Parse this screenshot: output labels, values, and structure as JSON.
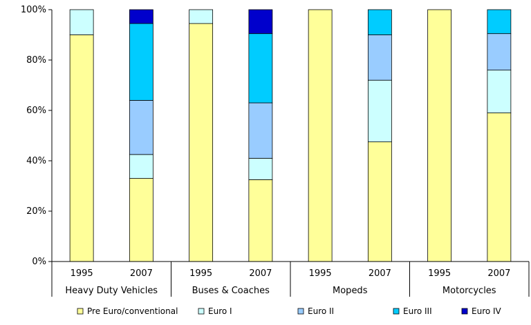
{
  "chart_data": {
    "type": "bar",
    "stacked": true,
    "y_format": "percent",
    "ylim": [
      0,
      100
    ],
    "yticks": [
      "0%",
      "20%",
      "40%",
      "60%",
      "80%",
      "100%"
    ],
    "groups": [
      {
        "label": "Heavy Duty Vehicles",
        "years": [
          "1995",
          "2007"
        ]
      },
      {
        "label": "Buses & Coaches",
        "years": [
          "1995",
          "2007"
        ]
      },
      {
        "label": "Mopeds",
        "years": [
          "1995",
          "2007"
        ]
      },
      {
        "label": "Motorcycles",
        "years": [
          "1995",
          "2007"
        ]
      }
    ],
    "categories": [
      "Heavy Duty Vehicles 1995",
      "Heavy Duty Vehicles 2007",
      "Buses & Coaches 1995",
      "Buses & Coaches 2007",
      "Mopeds 1995",
      "Mopeds 2007",
      "Motorcycles 1995",
      "Motorcycles 2007"
    ],
    "series": [
      {
        "name": "Pre Euro/conventional",
        "color": "#FFFF99",
        "values": [
          90,
          33,
          94.5,
          32.5,
          100,
          47.5,
          100,
          59
        ]
      },
      {
        "name": "Euro I",
        "color": "#CCFFFF",
        "values": [
          10,
          9.5,
          5.5,
          8.5,
          0,
          24.5,
          0,
          17
        ]
      },
      {
        "name": "Euro II",
        "color": "#99CCFF",
        "values": [
          0,
          21.5,
          0,
          22,
          0,
          18,
          0,
          14.5
        ]
      },
      {
        "name": "Euro III",
        "color": "#00CCFF",
        "values": [
          0,
          30.5,
          0,
          27.5,
          0,
          10,
          0,
          9.5
        ]
      },
      {
        "name": "Euro IV",
        "color": "#0000CC",
        "values": [
          0,
          5.5,
          0,
          9.5,
          0,
          0,
          0,
          0
        ]
      }
    ]
  }
}
